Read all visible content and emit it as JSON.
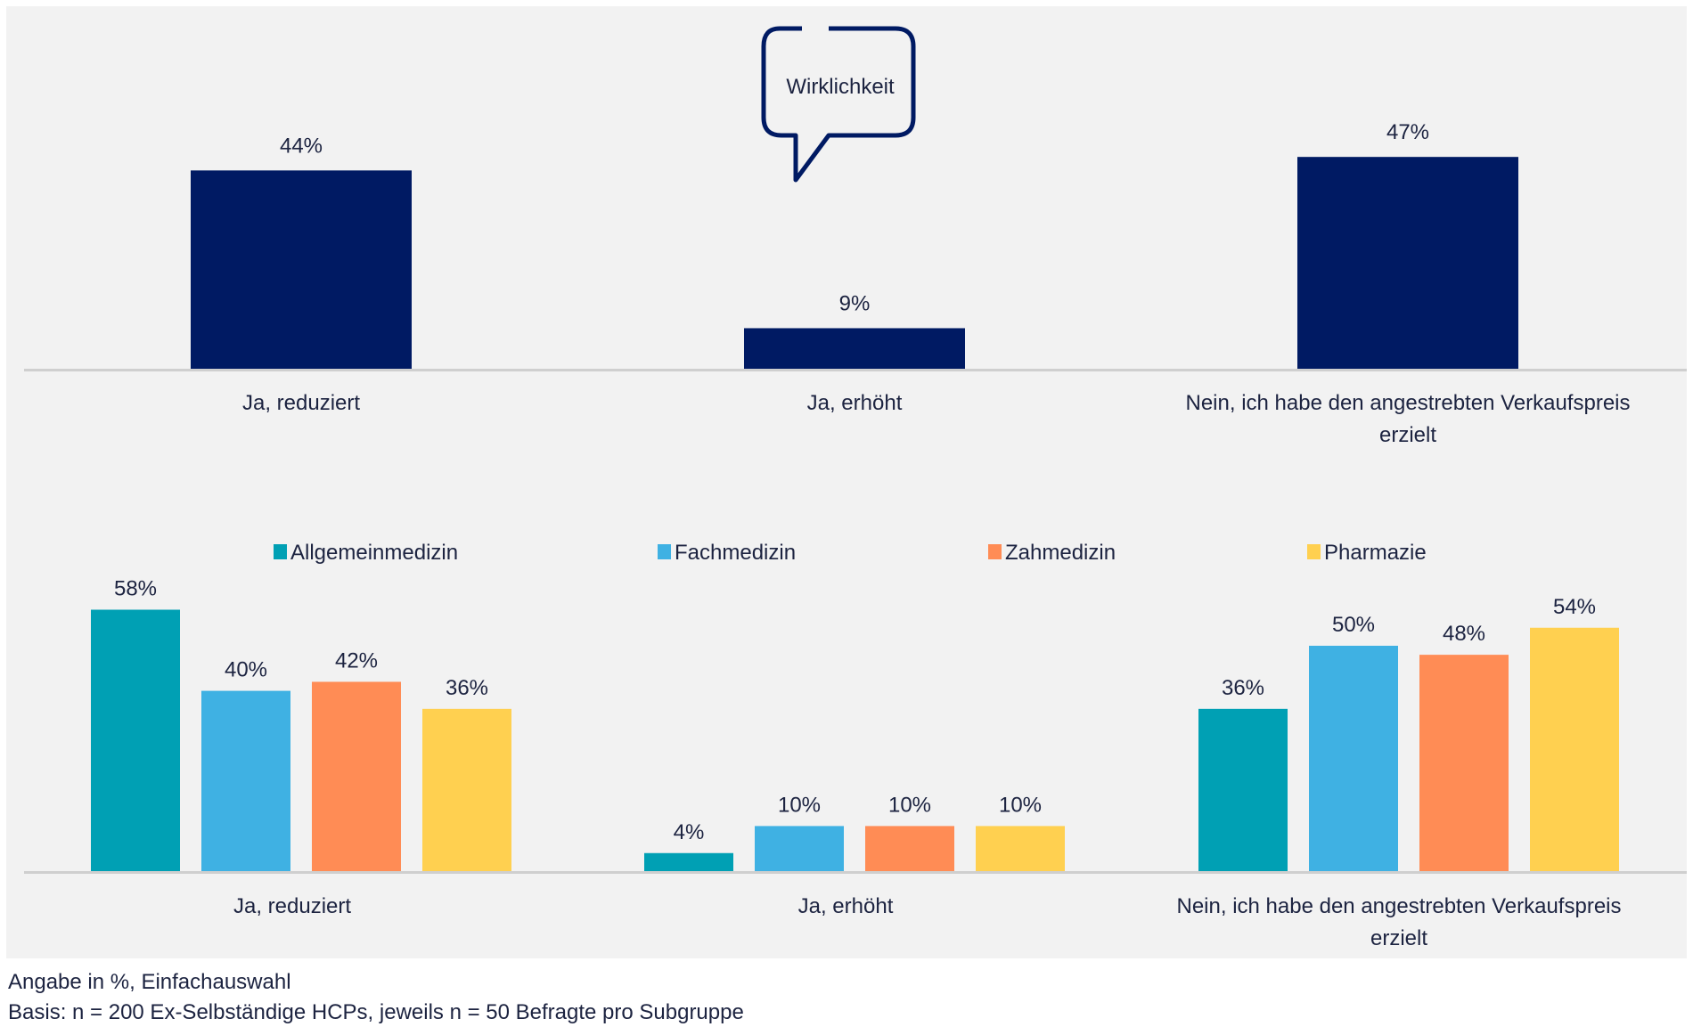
{
  "chart_data": [
    {
      "type": "bar",
      "title": "",
      "annotation": "Wirklichkeit",
      "categories": [
        "Ja, reduziert",
        "Ja, erhöht",
        "Nein, ich habe den angestrebten Verkaufspreis erzielt"
      ],
      "values": [
        44,
        9,
        47
      ],
      "data_labels": [
        "44%",
        "9%",
        "47%"
      ],
      "color": "#001a63",
      "ylim": [
        0,
        60
      ],
      "grid": false
    },
    {
      "type": "bar",
      "categories": [
        "Ja, reduziert",
        "Ja, erhöht",
        "Nein, ich habe den angestrebten Verkaufspreis erzielt"
      ],
      "legend_position": "top",
      "series": [
        {
          "name": "Allgemeinmedizin",
          "color": "#00a0b4",
          "values": [
            58,
            4,
            36
          ]
        },
        {
          "name": "Fachmedizin",
          "color": "#3fb1e3",
          "values": [
            40,
            10,
            50
          ]
        },
        {
          "name": "Zahmedizin",
          "color": "#ff8c55",
          "values": [
            42,
            10,
            48
          ]
        },
        {
          "name": "Pharmazie",
          "color": "#ffd050",
          "values": [
            36,
            10,
            54
          ]
        }
      ],
      "ylim": [
        0,
        60
      ],
      "grid": false
    }
  ],
  "footnotes": {
    "line1": "Angabe in %, Einfachauswahl",
    "line2": "Basis: n = 200 Ex-Selbständige HCPs, jeweils n = 50 Befragte pro Subgruppe"
  }
}
